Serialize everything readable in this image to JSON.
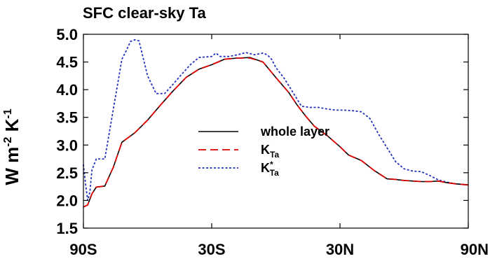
{
  "chart_data": {
    "type": "line",
    "title": "SFC clear-sky Ta",
    "ylabel": {
      "base": "W m",
      "exp1": "-2",
      "mid": " K",
      "exp2": "-1"
    },
    "xlabel": "",
    "xlim": [
      -90,
      90
    ],
    "ylim": [
      1.5,
      5.0
    ],
    "xticks": [
      {
        "value": -90,
        "label": "90S"
      },
      {
        "value": -30,
        "label": "30S"
      },
      {
        "value": 30,
        "label": "30N"
      },
      {
        "value": 90,
        "label": "90N"
      }
    ],
    "yticks": [
      {
        "value": 1.5,
        "label": "1.5"
      },
      {
        "value": 2.0,
        "label": "2.0"
      },
      {
        "value": 2.5,
        "label": "2.5"
      },
      {
        "value": 3.0,
        "label": "3.0"
      },
      {
        "value": 3.5,
        "label": "3.5"
      },
      {
        "value": 4.0,
        "label": "4.0"
      },
      {
        "value": 4.5,
        "label": "4.5"
      },
      {
        "value": 5.0,
        "label": "5.0"
      }
    ],
    "grid": false,
    "legend": {
      "position": "center"
    },
    "series": [
      {
        "name": "whole layer",
        "label_main": "whole layer",
        "label_sub": "",
        "label_sup": "",
        "color": "#000000",
        "style": "solid",
        "x": [
          -90,
          -88,
          -86,
          -84,
          -80,
          -76,
          -72,
          -66,
          -60,
          -54,
          -48,
          -42,
          -36,
          -30,
          -24,
          -18,
          -12,
          -6,
          0,
          6,
          10,
          14,
          18,
          24,
          30,
          34,
          40,
          46,
          52,
          56,
          60,
          64,
          68,
          72,
          76,
          80,
          84,
          90
        ],
        "y": [
          1.88,
          1.92,
          2.12,
          2.24,
          2.26,
          2.6,
          3.05,
          3.22,
          3.45,
          3.72,
          3.98,
          4.22,
          4.37,
          4.45,
          4.55,
          4.57,
          4.58,
          4.5,
          4.22,
          3.95,
          3.72,
          3.52,
          3.34,
          3.17,
          2.97,
          2.82,
          2.72,
          2.54,
          2.39,
          2.38,
          2.36,
          2.35,
          2.34,
          2.34,
          2.35,
          2.32,
          2.3,
          2.28
        ]
      },
      {
        "name": "K_Ta",
        "label_main": "K",
        "label_sub": "Ta",
        "label_sup": "",
        "color": "#dd0000",
        "style": "dashed",
        "x": [
          -90,
          -88,
          -86,
          -84,
          -80,
          -76,
          -72,
          -66,
          -60,
          -54,
          -48,
          -42,
          -36,
          -30,
          -24,
          -18,
          -12,
          -6,
          0,
          6,
          10,
          14,
          18,
          24,
          30,
          34,
          40,
          46,
          52,
          56,
          60,
          64,
          68,
          72,
          76,
          80,
          84,
          90
        ],
        "y": [
          1.88,
          1.92,
          2.12,
          2.24,
          2.26,
          2.6,
          3.05,
          3.22,
          3.45,
          3.72,
          3.98,
          4.22,
          4.37,
          4.45,
          4.55,
          4.57,
          4.57,
          4.5,
          4.22,
          3.95,
          3.72,
          3.52,
          3.34,
          3.17,
          2.97,
          2.82,
          2.72,
          2.54,
          2.39,
          2.38,
          2.36,
          2.35,
          2.34,
          2.34,
          2.35,
          2.32,
          2.3,
          2.28
        ]
      },
      {
        "name": "K*_Ta",
        "label_main": "K",
        "label_sub": "Ta",
        "label_sup": "*",
        "color": "#2233bb",
        "style": "dotted",
        "x": [
          -90,
          -89,
          -88,
          -87,
          -86,
          -84,
          -82,
          -80,
          -78,
          -76,
          -74,
          -72,
          -70,
          -68,
          -66,
          -64,
          -60,
          -56,
          -52,
          -48,
          -44,
          -40,
          -36,
          -30,
          -28,
          -26,
          -24,
          -22,
          -18,
          -14,
          -10,
          -6,
          -4,
          -2,
          0,
          4,
          8,
          12,
          16,
          20,
          24,
          28,
          32,
          36,
          40,
          44,
          48,
          52,
          56,
          60,
          64,
          68,
          72,
          76,
          80,
          84,
          90
        ],
        "y": [
          2.65,
          2.3,
          2.0,
          2.15,
          2.55,
          2.75,
          2.75,
          2.75,
          3.2,
          3.65,
          4.1,
          4.55,
          4.7,
          4.87,
          4.9,
          4.88,
          4.25,
          3.93,
          3.93,
          4.1,
          4.28,
          4.45,
          4.58,
          4.6,
          4.66,
          4.6,
          4.6,
          4.6,
          4.63,
          4.67,
          4.63,
          4.66,
          4.63,
          4.55,
          4.4,
          4.2,
          3.95,
          3.7,
          3.68,
          3.68,
          3.65,
          3.63,
          3.63,
          3.62,
          3.6,
          3.48,
          3.2,
          2.95,
          2.7,
          2.57,
          2.53,
          2.52,
          2.45,
          2.37,
          2.33,
          2.3,
          2.28
        ]
      }
    ]
  }
}
